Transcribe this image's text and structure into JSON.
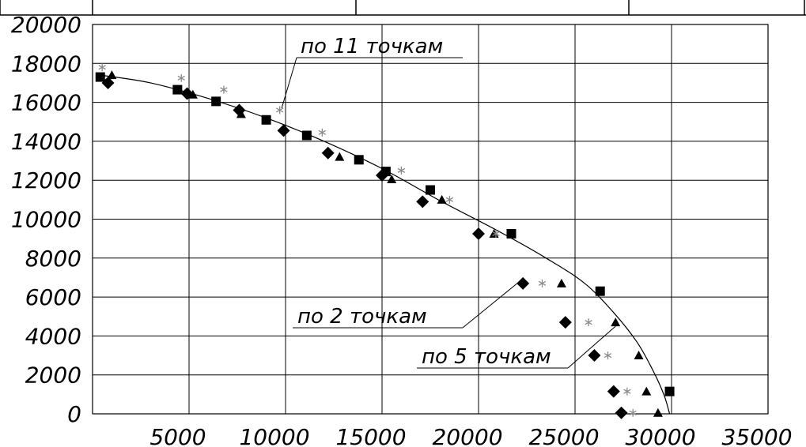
{
  "chart_data": {
    "type": "scatter",
    "title": "",
    "xlabel": "",
    "ylabel": "",
    "xlim": [
      0,
      35000
    ],
    "ylim": [
      0,
      20000
    ],
    "grid": true,
    "x_ticks": [
      "5000",
      "10000",
      "15000",
      "20000",
      "25000",
      "30000",
      "35000"
    ],
    "x_tick_values": [
      5000,
      10000,
      15000,
      20000,
      25000,
      30000,
      35000
    ],
    "y_ticks": [
      "0",
      "2000",
      "4000",
      "6000",
      "8000",
      "10000",
      "12000",
      "14000",
      "16000",
      "18000",
      "20000"
    ],
    "y_tick_values": [
      0,
      2000,
      4000,
      6000,
      8000,
      10000,
      12000,
      14000,
      16000,
      18000,
      20000
    ],
    "series": [
      {
        "marker": "square",
        "color": "#000000",
        "points": [
          [
            400,
            17300
          ],
          [
            4400,
            16650
          ],
          [
            6400,
            16050
          ],
          [
            9000,
            15100
          ],
          [
            11100,
            14300
          ],
          [
            13800,
            13050
          ],
          [
            15200,
            12450
          ],
          [
            17500,
            11500
          ],
          [
            21700,
            9250
          ],
          [
            26300,
            6300
          ],
          [
            29900,
            1150
          ]
        ]
      },
      {
        "marker": "diamond",
        "color": "#000000",
        "points": [
          [
            800,
            17000
          ],
          [
            4900,
            16450
          ],
          [
            7600,
            15600
          ],
          [
            9900,
            14550
          ],
          [
            12200,
            13400
          ],
          [
            15000,
            12250
          ],
          [
            17100,
            10900
          ],
          [
            20000,
            9250
          ],
          [
            22300,
            6700
          ],
          [
            24500,
            4700
          ],
          [
            26000,
            3000
          ],
          [
            27000,
            1150
          ],
          [
            27400,
            50
          ]
        ]
      },
      {
        "marker": "triangle",
        "color": "#000000",
        "points": [
          [
            1000,
            17400
          ],
          [
            5200,
            16400
          ],
          [
            7700,
            15400
          ],
          [
            12800,
            13200
          ],
          [
            15500,
            12050
          ],
          [
            18100,
            11000
          ],
          [
            20800,
            9250
          ],
          [
            24300,
            6700
          ],
          [
            27100,
            4700
          ],
          [
            28300,
            3000
          ],
          [
            28700,
            1150
          ],
          [
            29300,
            50
          ]
        ]
      },
      {
        "marker": "asterisk",
        "color": "#8a8a8a",
        "points": [
          [
            500,
            17800
          ],
          [
            4600,
            17250
          ],
          [
            6800,
            16650
          ],
          [
            9700,
            15600
          ],
          [
            11900,
            14450
          ],
          [
            16000,
            12500
          ],
          [
            18500,
            11000
          ],
          [
            20900,
            9250
          ],
          [
            23300,
            6700
          ],
          [
            25700,
            4700
          ],
          [
            26700,
            3000
          ],
          [
            27700,
            1150
          ],
          [
            28000,
            50
          ]
        ]
      }
    ],
    "fit_curve": {
      "color": "#000000",
      "points": [
        [
          400,
          17400
        ],
        [
          3000,
          17000
        ],
        [
          6000,
          16200
        ],
        [
          9000,
          15200
        ],
        [
          12000,
          14000
        ],
        [
          15000,
          12600
        ],
        [
          18000,
          10950
        ],
        [
          21000,
          9400
        ],
        [
          23500,
          8000
        ],
        [
          25500,
          6700
        ],
        [
          27000,
          5200
        ],
        [
          28200,
          3700
        ],
        [
          29000,
          2300
        ],
        [
          29600,
          1000
        ],
        [
          29900,
          0
        ]
      ]
    },
    "annotations": [
      {
        "text": "по 11 точкам",
        "target": [
          9800,
          15700
        ]
      },
      {
        "text": "по 2 точкам",
        "target": [
          22000,
          6700
        ]
      },
      {
        "text": "по 5 точкам",
        "target": [
          27100,
          4500
        ]
      }
    ]
  }
}
